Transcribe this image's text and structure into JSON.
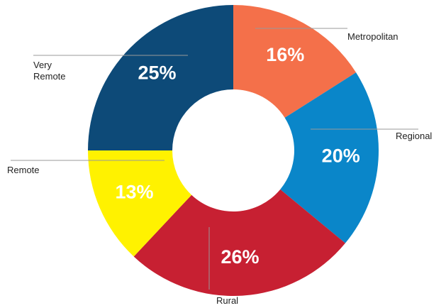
{
  "chart_data": {
    "type": "donut",
    "categories": [
      "Metropolitan",
      "Regional",
      "Rural",
      "Remote",
      "Very Remote"
    ],
    "values": [
      16,
      20,
      26,
      13,
      25
    ],
    "value_labels": [
      "16%",
      "20%",
      "26%",
      "13%",
      "25%"
    ],
    "colors": [
      "#f4704a",
      "#0a86c9",
      "#c72032",
      "#fff200",
      "#0d4a78"
    ]
  }
}
